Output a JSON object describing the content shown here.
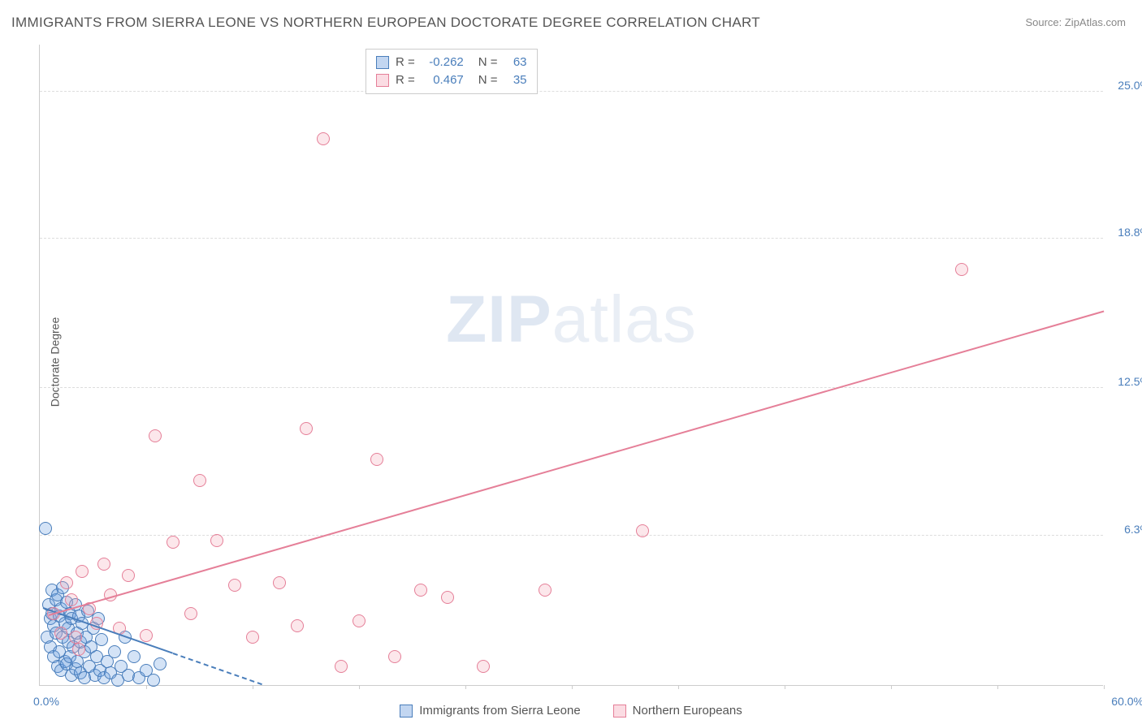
{
  "title": "IMMIGRANTS FROM SIERRA LEONE VS NORTHERN EUROPEAN DOCTORATE DEGREE CORRELATION CHART",
  "source": "Source: ZipAtlas.com",
  "watermark_prefix": "ZIP",
  "watermark_suffix": "atlas",
  "chart": {
    "type": "scatter",
    "background_color": "#ffffff",
    "grid_color": "#dddddd",
    "axis_color": "#cccccc",
    "tick_label_color": "#4a7ebb",
    "ylabel": "Doctorate Degree",
    "ylabel_fontsize": 14,
    "xlim": [
      0,
      60
    ],
    "ylim": [
      0,
      27
    ],
    "x_ticks": [
      0,
      6,
      12,
      18,
      24,
      30,
      36,
      42,
      48,
      54,
      60
    ],
    "x_min_label": "0.0%",
    "x_max_label": "60.0%",
    "y_gridlines": [
      {
        "value": 6.3,
        "label": "6.3%"
      },
      {
        "value": 12.5,
        "label": "12.5%"
      },
      {
        "value": 18.8,
        "label": "18.8%"
      },
      {
        "value": 25.0,
        "label": "25.0%"
      }
    ],
    "marker_radius": 8,
    "marker_border_width": 1,
    "marker_fill_opacity": 0.28,
    "series": [
      {
        "name": "Immigrants from Sierra Leone",
        "color": "#6699dd",
        "border_color": "#4a7ebb",
        "R": "-0.262",
        "N": "63",
        "trend": {
          "x1": 0.2,
          "y1": 3.2,
          "x2": 12.5,
          "y2": 0.0,
          "width": 2,
          "dashed_beyond_x": 7.5
        },
        "points": [
          [
            0.3,
            6.6
          ],
          [
            0.4,
            2.0
          ],
          [
            0.5,
            3.4
          ],
          [
            0.6,
            2.8
          ],
          [
            0.6,
            1.6
          ],
          [
            0.7,
            4.0
          ],
          [
            0.7,
            3.0
          ],
          [
            0.8,
            2.5
          ],
          [
            0.8,
            1.2
          ],
          [
            0.9,
            3.6
          ],
          [
            0.9,
            2.2
          ],
          [
            1.0,
            0.8
          ],
          [
            1.0,
            3.8
          ],
          [
            1.1,
            2.9
          ],
          [
            1.1,
            1.4
          ],
          [
            1.2,
            3.2
          ],
          [
            1.2,
            0.6
          ],
          [
            1.3,
            2.0
          ],
          [
            1.3,
            4.1
          ],
          [
            1.4,
            1.0
          ],
          [
            1.4,
            2.6
          ],
          [
            1.5,
            3.5
          ],
          [
            1.5,
            0.9
          ],
          [
            1.6,
            1.8
          ],
          [
            1.6,
            2.4
          ],
          [
            1.7,
            3.0
          ],
          [
            1.7,
            1.2
          ],
          [
            1.8,
            0.4
          ],
          [
            1.8,
            2.8
          ],
          [
            1.9,
            1.6
          ],
          [
            2.0,
            3.4
          ],
          [
            2.0,
            0.7
          ],
          [
            2.1,
            2.2
          ],
          [
            2.1,
            1.0
          ],
          [
            2.2,
            2.9
          ],
          [
            2.3,
            0.5
          ],
          [
            2.3,
            1.8
          ],
          [
            2.4,
            2.6
          ],
          [
            2.5,
            0.3
          ],
          [
            2.5,
            1.4
          ],
          [
            2.6,
            2.0
          ],
          [
            2.7,
            3.1
          ],
          [
            2.8,
            0.8
          ],
          [
            2.9,
            1.6
          ],
          [
            3.0,
            2.4
          ],
          [
            3.1,
            0.4
          ],
          [
            3.2,
            1.2
          ],
          [
            3.3,
            2.8
          ],
          [
            3.4,
            0.6
          ],
          [
            3.5,
            1.9
          ],
          [
            3.6,
            0.3
          ],
          [
            3.8,
            1.0
          ],
          [
            4.0,
            0.5
          ],
          [
            4.2,
            1.4
          ],
          [
            4.4,
            0.2
          ],
          [
            4.6,
            0.8
          ],
          [
            4.8,
            2.0
          ],
          [
            5.0,
            0.4
          ],
          [
            5.3,
            1.2
          ],
          [
            5.6,
            0.3
          ],
          [
            6.0,
            0.6
          ],
          [
            6.4,
            0.2
          ],
          [
            6.8,
            0.9
          ]
        ]
      },
      {
        "name": "Northern Europeans",
        "color": "#f5a8b8",
        "border_color": "#e57f98",
        "R": "0.467",
        "N": "35",
        "trend": {
          "x1": 0.5,
          "y1": 2.9,
          "x2": 60.0,
          "y2": 15.7,
          "width": 2
        },
        "points": [
          [
            0.8,
            3.0
          ],
          [
            1.2,
            2.2
          ],
          [
            1.5,
            4.3
          ],
          [
            1.8,
            3.6
          ],
          [
            2.0,
            2.0
          ],
          [
            2.4,
            4.8
          ],
          [
            2.8,
            3.2
          ],
          [
            3.2,
            2.6
          ],
          [
            3.6,
            5.1
          ],
          [
            4.0,
            3.8
          ],
          [
            4.5,
            2.4
          ],
          [
            5.0,
            4.6
          ],
          [
            6.0,
            2.1
          ],
          [
            6.5,
            10.5
          ],
          [
            7.5,
            6.0
          ],
          [
            8.5,
            3.0
          ],
          [
            9.0,
            8.6
          ],
          [
            10.0,
            6.1
          ],
          [
            11.0,
            4.2
          ],
          [
            12.0,
            2.0
          ],
          [
            13.5,
            4.3
          ],
          [
            14.5,
            2.5
          ],
          [
            15.0,
            10.8
          ],
          [
            16.0,
            23.0
          ],
          [
            17.0,
            0.8
          ],
          [
            18.0,
            2.7
          ],
          [
            19.0,
            9.5
          ],
          [
            20.0,
            1.2
          ],
          [
            21.5,
            4.0
          ],
          [
            23.0,
            3.7
          ],
          [
            25.0,
            0.8
          ],
          [
            28.5,
            4.0
          ],
          [
            34.0,
            6.5
          ],
          [
            52.0,
            17.5
          ],
          [
            2.2,
            1.5
          ]
        ]
      }
    ]
  }
}
